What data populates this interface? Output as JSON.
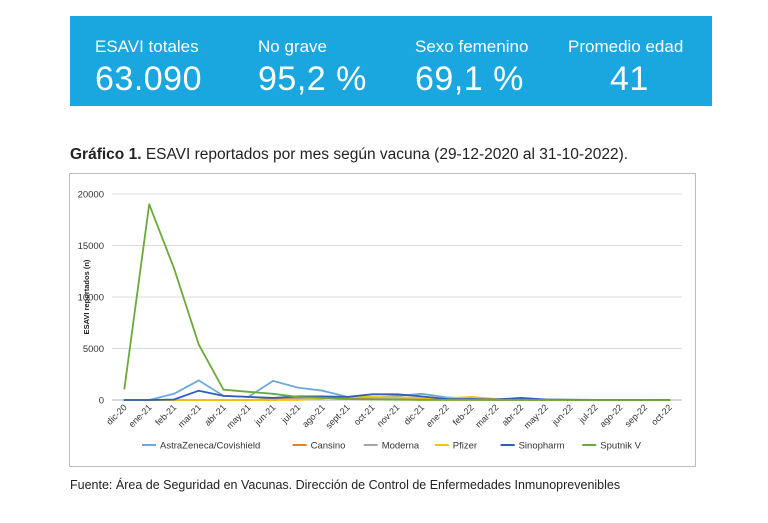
{
  "colors": {
    "banner_bg": "#1aa6df",
    "banner_text": "#ffffff"
  },
  "kpis": [
    {
      "label": "ESAVI totales",
      "value": "63.090"
    },
    {
      "label": "No grave",
      "value": "95,2 %"
    },
    {
      "label": "Sexo femenino",
      "value": "69,1 %"
    },
    {
      "label": "Promedio edad",
      "value": "41"
    }
  ],
  "caption": {
    "prefix": "Gráfico 1.",
    "text": "ESAVI reportados por mes según vacuna (29-12-2020 al 31-10-2022)."
  },
  "source": "Fuente: Área de Seguridad en Vacunas. Dirección de Control de Enfermedades Inmunoprevenibles",
  "chart_data": {
    "type": "line",
    "title": "",
    "xlabel": "",
    "ylabel": "ESAVI reportados (n)",
    "ylim": [
      0,
      20000
    ],
    "yticks": [
      0,
      5000,
      10000,
      15000,
      20000
    ],
    "grid": true,
    "legend_position": "bottom",
    "categories": [
      "dic-20",
      "ene-21",
      "feb-21",
      "mar-21",
      "abr-21",
      "may-21",
      "jun-21",
      "jul-21",
      "ago-21",
      "sept-21",
      "oct-21",
      "nov-21",
      "dic-21",
      "ene-22",
      "feb-22",
      "mar-22",
      "abr-22",
      "may-22",
      "jun-22",
      "jul-22",
      "ago-22",
      "sep-22",
      "oct-22"
    ],
    "series": [
      {
        "name": "AstraZeneca/Covishield",
        "color": "#6fa8dc",
        "values": [
          0,
          0,
          600,
          1900,
          400,
          300,
          1850,
          1200,
          900,
          300,
          200,
          400,
          600,
          250,
          150,
          100,
          50,
          50,
          20,
          10,
          10,
          5,
          5
        ]
      },
      {
        "name": "Cansino",
        "color": "#e67e22",
        "values": [
          0,
          0,
          0,
          0,
          0,
          0,
          100,
          200,
          200,
          150,
          100,
          50,
          20,
          10,
          5,
          0,
          0,
          0,
          0,
          0,
          0,
          0,
          0
        ]
      },
      {
        "name": "Moderna",
        "color": "#a6a6a6",
        "values": [
          0,
          0,
          0,
          0,
          0,
          0,
          0,
          100,
          200,
          300,
          250,
          150,
          100,
          50,
          30,
          20,
          10,
          5,
          5,
          5,
          0,
          0,
          0
        ]
      },
      {
        "name": "Pfizer",
        "color": "#f1c40f",
        "values": [
          0,
          0,
          0,
          0,
          0,
          0,
          0,
          0,
          150,
          300,
          300,
          250,
          200,
          150,
          300,
          100,
          50,
          30,
          20,
          10,
          5,
          5,
          5
        ]
      },
      {
        "name": "Sinopharm",
        "color": "#2f5fb3",
        "values": [
          0,
          0,
          50,
          900,
          400,
          300,
          200,
          350,
          350,
          300,
          550,
          550,
          350,
          100,
          80,
          50,
          200,
          50,
          20,
          10,
          5,
          5,
          5
        ]
      },
      {
        "name": "Sputnik V",
        "color": "#6aaa3a",
        "values": [
          1100,
          19000,
          12800,
          5400,
          1000,
          800,
          600,
          300,
          200,
          100,
          50,
          30,
          20,
          10,
          5,
          5,
          5,
          0,
          0,
          0,
          0,
          0,
          0
        ]
      }
    ]
  }
}
